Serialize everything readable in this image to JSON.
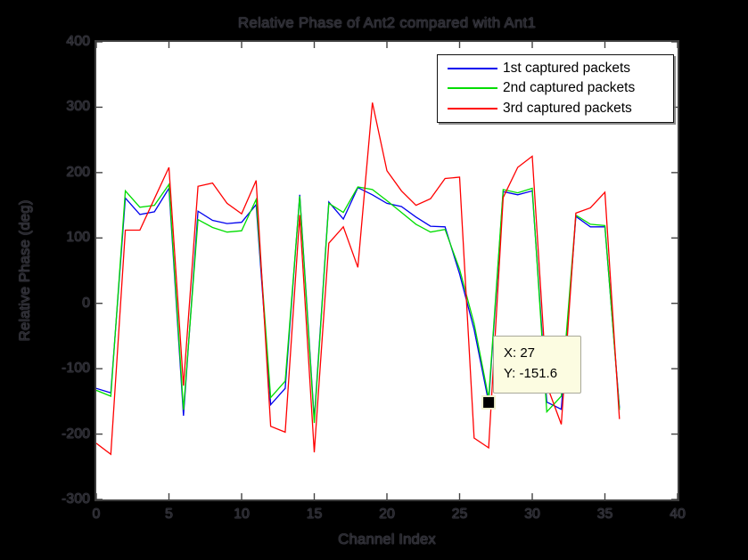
{
  "title": "Relative Phase of Ant2 compared with Ant1",
  "colors": {
    "figure_bg": "#000000",
    "plot_bg": "#ffffff",
    "axis_border": "#3d3d3d",
    "tooltip_bg": "#fcfce1",
    "series_blue": "#0000ee",
    "series_green": "#00dd00",
    "series_red": "#ff0000"
  },
  "legend": {
    "items": [
      {
        "label": "1st captured packets",
        "color": "#0000ee"
      },
      {
        "label": "2nd captured packets",
        "color": "#00dd00"
      },
      {
        "label": "3rd captured packets",
        "color": "#ff0000"
      }
    ]
  },
  "tooltip": {
    "line1": "X: 27",
    "line2": "Y: -151.6"
  },
  "chart_data": {
    "type": "line",
    "title": "Relative Phase of Ant2 compared with Ant1",
    "xlabel": "Channel Index",
    "ylabel": "Relative Phase (deg)",
    "xlim": [
      0,
      40
    ],
    "ylim": [
      -300,
      400
    ],
    "x_ticks": [
      0,
      5,
      10,
      15,
      20,
      25,
      30,
      35,
      40
    ],
    "y_ticks": [
      -300,
      -200,
      -100,
      0,
      100,
      200,
      300,
      400
    ],
    "grid": false,
    "legend_position": "top-right-inside",
    "x": [
      0,
      1,
      2,
      3,
      4,
      5,
      6,
      7,
      8,
      9,
      10,
      11,
      12,
      13,
      14,
      15,
      16,
      17,
      18,
      19,
      20,
      21,
      22,
      23,
      24,
      25,
      26,
      27,
      28,
      29,
      30,
      31,
      32,
      33,
      34,
      35,
      36
    ],
    "series": [
      {
        "name": "1st captured packets",
        "color": "#0000ee",
        "values": [
          -130,
          -137,
          161,
          136,
          140,
          176,
          -172,
          141,
          127,
          122,
          124,
          151,
          -155,
          -130,
          166,
          -178,
          155,
          129,
          177,
          166,
          153,
          148,
          132,
          118,
          117,
          45,
          -40,
          -151.6,
          171,
          166,
          172,
          -151,
          -162,
          133,
          117,
          117,
          -160
        ]
      },
      {
        "name": "2nd captured packets",
        "color": "#00dd00",
        "values": [
          -133,
          -142,
          172,
          147,
          150,
          182,
          -163,
          128,
          116,
          109,
          111,
          159,
          -144,
          -119,
          164,
          -183,
          153,
          139,
          178,
          174,
          157,
          139,
          121,
          109,
          113,
          52,
          -31,
          -145,
          174,
          169,
          176,
          -166,
          -142,
          135,
          121,
          119,
          -163
        ]
      },
      {
        "name": "3rd captured packets",
        "color": "#ff0000",
        "values": [
          -214,
          -231,
          112,
          112,
          160,
          208,
          -126,
          179,
          184,
          153,
          137,
          188,
          -188,
          -197,
          135,
          -228,
          92,
          117,
          55,
          307,
          203,
          172,
          150,
          160,
          191,
          193,
          -206,
          -221,
          162,
          208,
          225,
          -125,
          -185,
          138,
          146,
          170,
          -177
        ]
      }
    ],
    "datatip": {
      "x": 27,
      "y": -151.6
    }
  }
}
